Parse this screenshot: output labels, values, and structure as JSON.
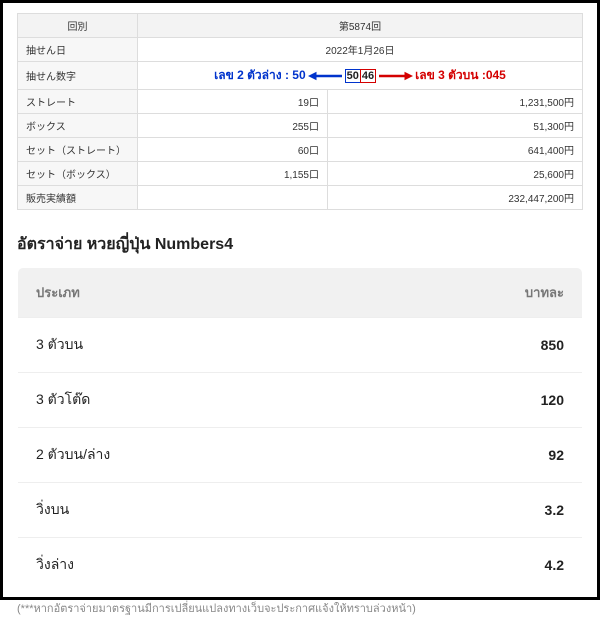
{
  "lottery": {
    "header_left": "回別",
    "header_right": "第5874回",
    "rows": [
      {
        "label": "抽せん日",
        "mid": "",
        "right": "2022年1月26日",
        "date": true
      },
      {
        "label": "抽せん数字",
        "annot": true
      },
      {
        "label": "ストレート",
        "mid": "19口",
        "right": "1,231,500円"
      },
      {
        "label": "ボックス",
        "mid": "255口",
        "right": "51,300円"
      },
      {
        "label": "セット（ストレート）",
        "mid": "60口",
        "right": "641,400円"
      },
      {
        "label": "セット（ボックス）",
        "mid": "1,155口",
        "right": "25,600円"
      },
      {
        "label": "販売実績額",
        "mid": "",
        "right": "232,447,200円"
      }
    ],
    "annot": {
      "left_text": "เลข 2 ตัวล่าง : 50",
      "right_text": "เลข 3 ตัวบน :045",
      "digits_blue": "50",
      "digits_red": "46",
      "arrow_blue": "#0033cc",
      "arrow_red": "#d40000"
    }
  },
  "section_title": "อัตราจ่าย หวยญี่ปุ่น Numbers4",
  "rates": {
    "col_type": "ประเภท",
    "col_rate": "บาทละ",
    "rows": [
      {
        "type": "3 ตัวบน",
        "rate": "850"
      },
      {
        "type": "3 ตัวโต๊ด",
        "rate": "120"
      },
      {
        "type": "2 ตัวบน/ล่าง",
        "rate": "92"
      },
      {
        "type": "วิ่งบน",
        "rate": "3.2"
      },
      {
        "type": "วิ่งล่าง",
        "rate": "4.2"
      }
    ]
  },
  "footnote": "(***หากอัตราจ่ายมาตรฐานมีการเปลี่ยนแปลงทางเว็บจะประกาศแจ้งให้ทราบล่วงหน้า)"
}
